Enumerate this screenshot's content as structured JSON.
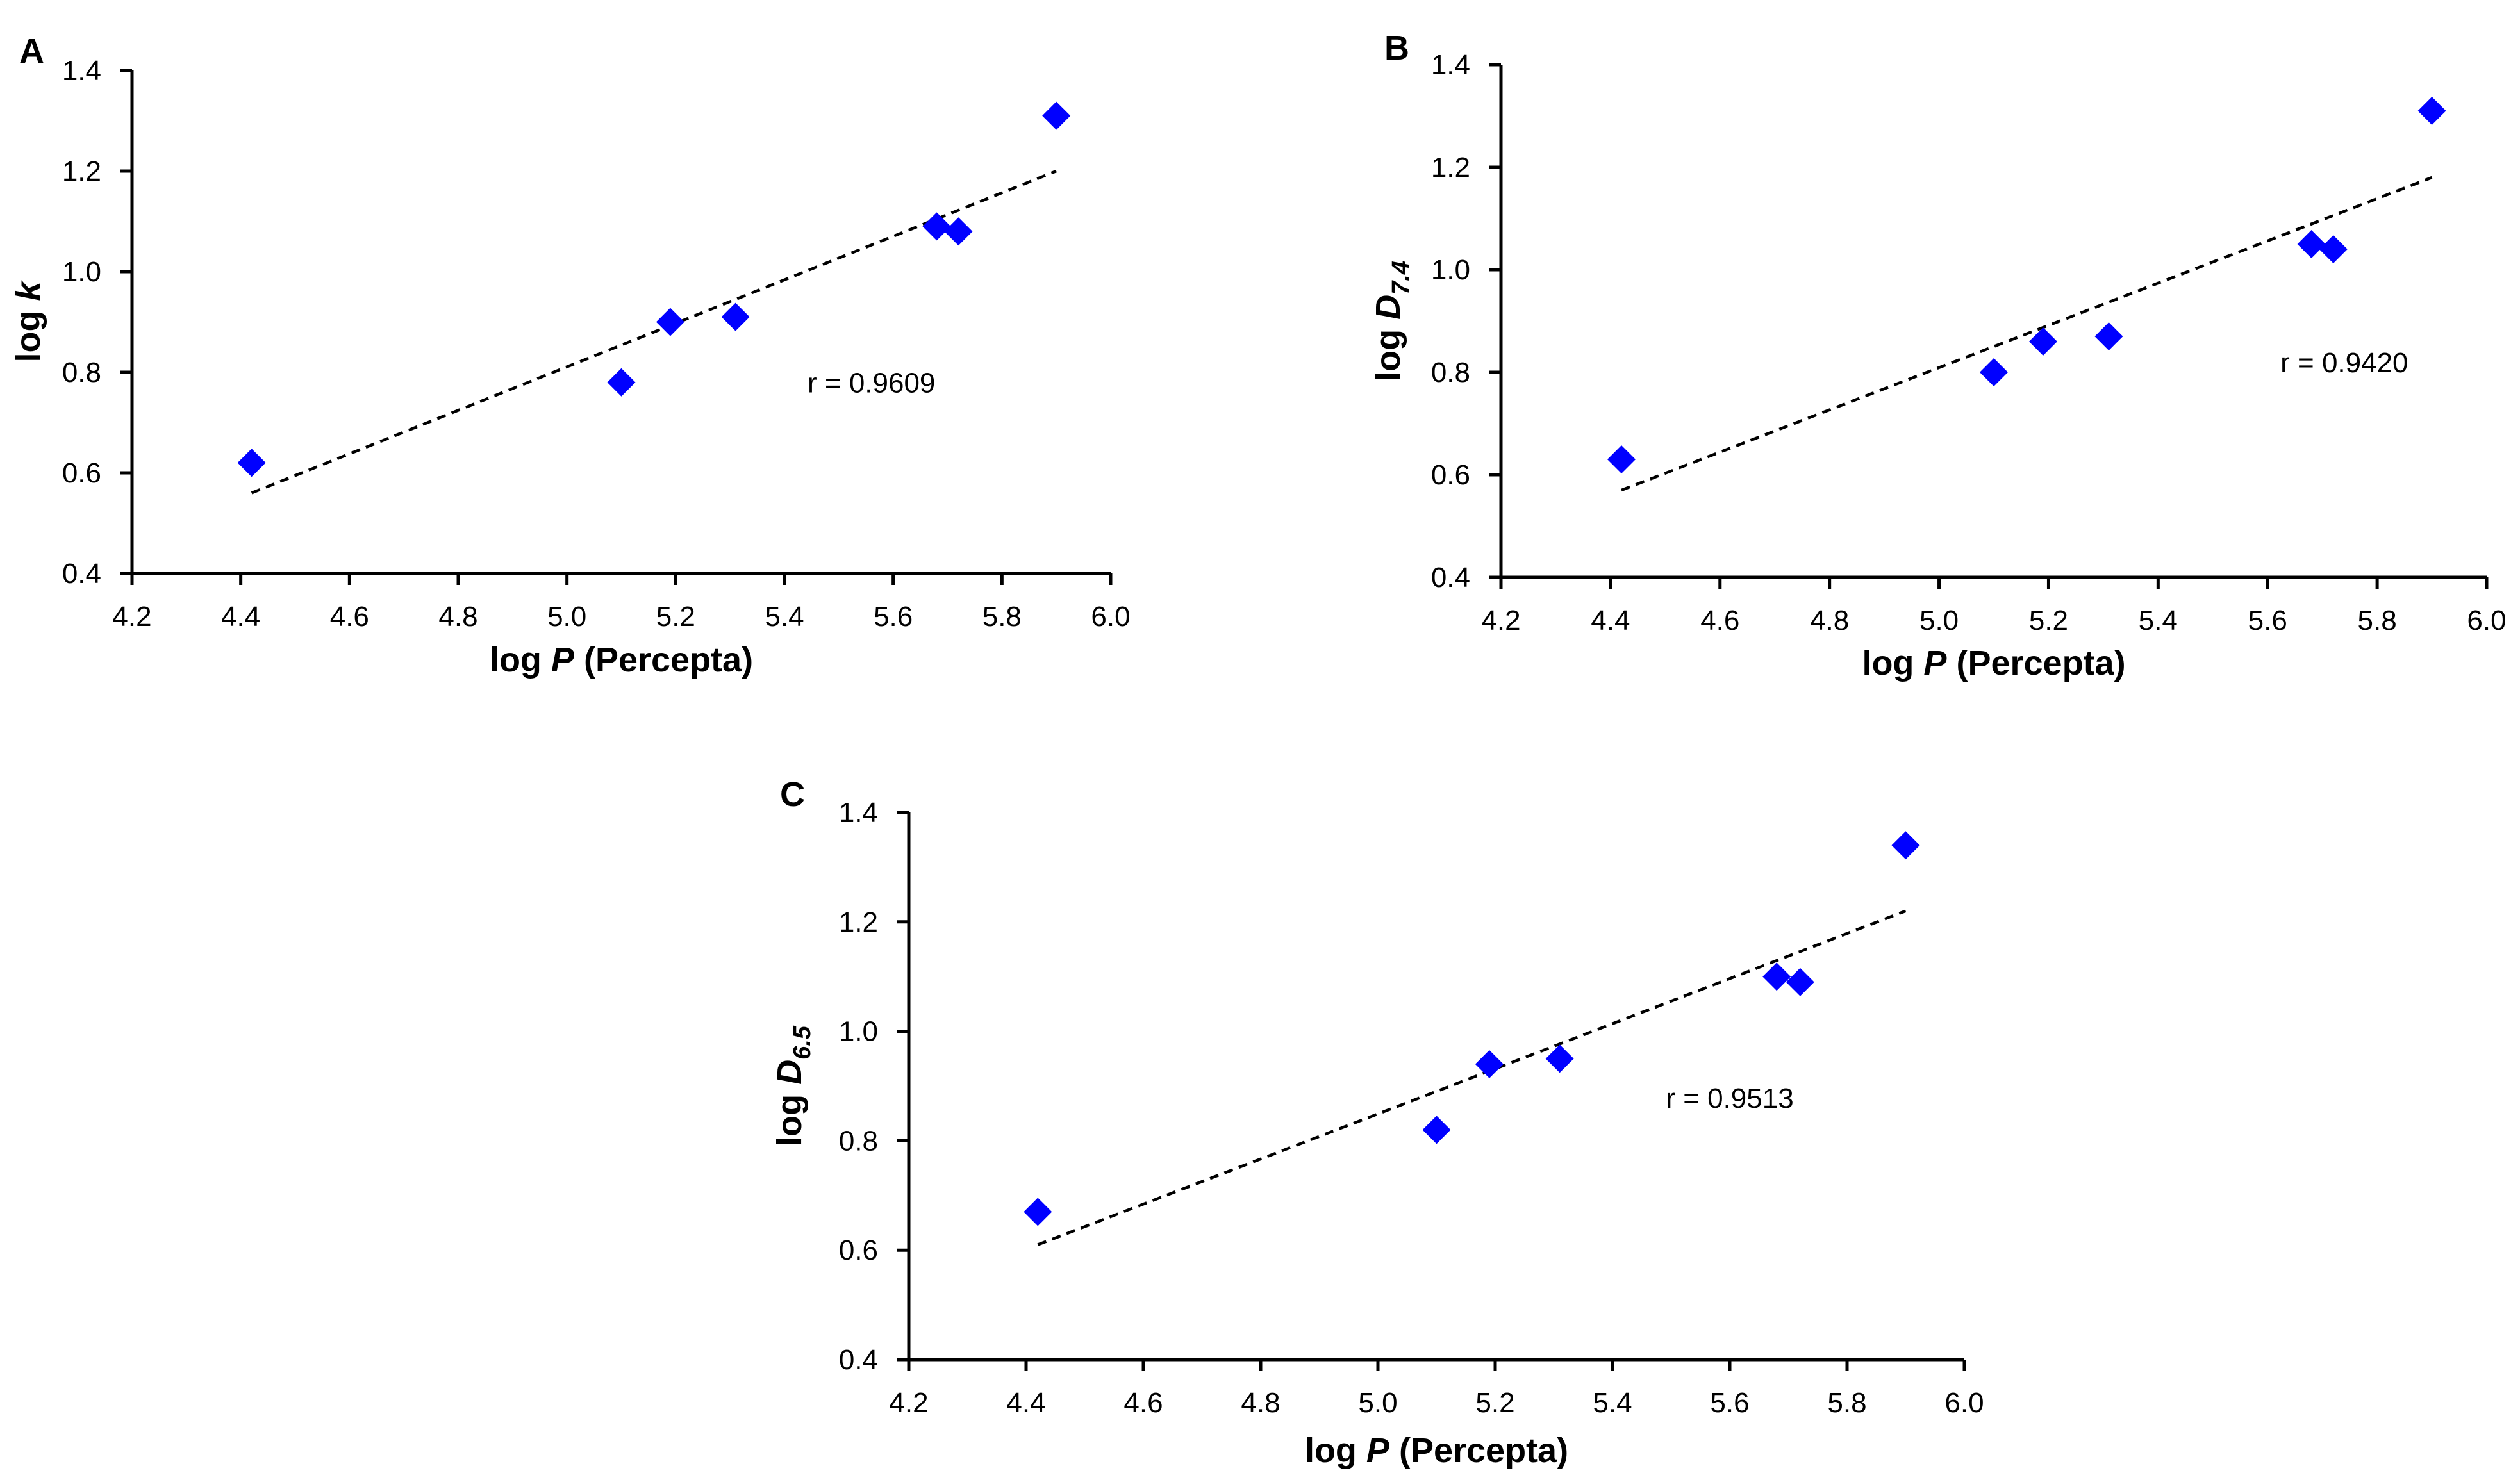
{
  "chart_data": [
    {
      "type": "scatter",
      "panel": "A",
      "xlabel_prefix": "log ",
      "xlabel_italic": "P",
      "xlabel_suffix": " (Percepta)",
      "ylabel_prefix": "log ",
      "ylabel_italic": "k",
      "ylabel_sub": "",
      "xlim": [
        4.2,
        6.0
      ],
      "ylim": [
        0.4,
        1.4
      ],
      "xticks": [
        "4.2",
        "4.4",
        "4.6",
        "4.8",
        "5.0",
        "5.2",
        "5.4",
        "5.6",
        "5.8",
        "6.0"
      ],
      "yticks": [
        "0.4",
        "0.6",
        "0.8",
        "1.0",
        "1.2",
        "1.4"
      ],
      "x": [
        4.42,
        5.1,
        5.19,
        5.31,
        5.68,
        5.72,
        5.9
      ],
      "y": [
        0.62,
        0.78,
        0.9,
        0.91,
        1.09,
        1.08,
        1.31
      ],
      "trendline": {
        "x": [
          4.42,
          5.9
        ],
        "y": [
          0.56,
          1.2
        ]
      },
      "r_label": "r = 0.9609",
      "r_position": [
        5.56,
        0.76
      ],
      "marker_color": "#0000FF",
      "grid": false
    },
    {
      "type": "scatter",
      "panel": "B",
      "xlabel_prefix": "log ",
      "xlabel_italic": "P",
      "xlabel_suffix": " (Percepta)",
      "ylabel_prefix": "log ",
      "ylabel_italic": "D",
      "ylabel_sub": "7.4",
      "xlim": [
        4.2,
        6.0
      ],
      "ylim": [
        0.4,
        1.4
      ],
      "xticks": [
        "4.2",
        "4.4",
        "4.6",
        "4.8",
        "5.0",
        "5.2",
        "5.4",
        "5.6",
        "5.8",
        "6.0"
      ],
      "yticks": [
        "0.4",
        "0.6",
        "0.8",
        "1.0",
        "1.2",
        "1.4"
      ],
      "x": [
        4.42,
        5.1,
        5.19,
        5.31,
        5.68,
        5.72,
        5.9
      ],
      "y": [
        0.63,
        0.8,
        0.86,
        0.87,
        1.05,
        1.04,
        1.31
      ],
      "trendline": {
        "x": [
          4.42,
          5.9
        ],
        "y": [
          0.57,
          1.18
        ]
      },
      "r_label": "r = 0.9420",
      "r_position": [
        5.74,
        0.8
      ],
      "marker_color": "#0000FF",
      "grid": false
    },
    {
      "type": "scatter",
      "panel": "C",
      "xlabel_prefix": "log ",
      "xlabel_italic": "P",
      "xlabel_suffix": " (Percepta)",
      "ylabel_prefix": "log ",
      "ylabel_italic": "D",
      "ylabel_sub": "6.5",
      "xlim": [
        4.2,
        6.0
      ],
      "ylim": [
        0.4,
        1.4
      ],
      "xticks": [
        "4.2",
        "4.4",
        "4.6",
        "4.8",
        "5.0",
        "5.2",
        "5.4",
        "5.6",
        "5.8",
        "6.0"
      ],
      "yticks": [
        "0.4",
        "0.6",
        "0.8",
        "1.0",
        "1.2",
        "1.4"
      ],
      "x": [
        4.42,
        5.1,
        5.19,
        5.31,
        5.68,
        5.72,
        5.9
      ],
      "y": [
        0.67,
        0.82,
        0.94,
        0.95,
        1.1,
        1.09,
        1.34
      ],
      "trendline": {
        "x": [
          4.42,
          5.9
        ],
        "y": [
          0.61,
          1.22
        ]
      },
      "r_label": "r = 0.9513",
      "r_position": [
        5.6,
        0.86
      ],
      "marker_color": "#0000FF",
      "grid": false
    }
  ]
}
